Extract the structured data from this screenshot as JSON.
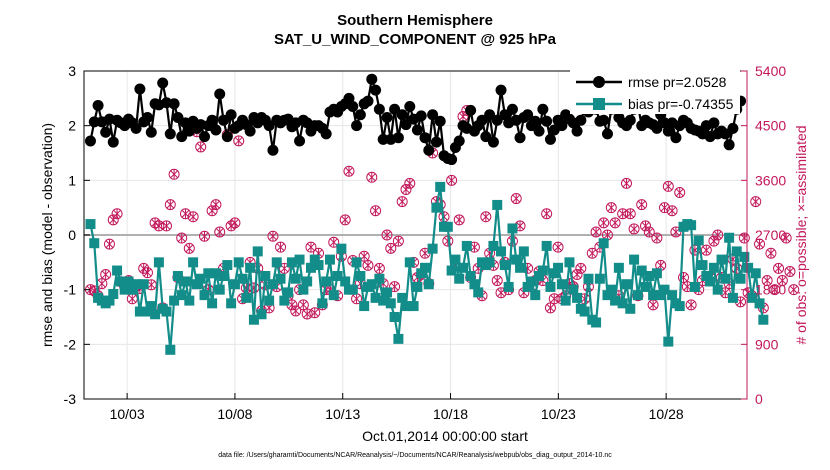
{
  "chart_data": {
    "type": "line",
    "title": "Southern Hemisphere",
    "subtitle": "SAT_U_WIND_COMPONENT @ 925 hPa",
    "xlabel": "Oct.01,2014 00:00:00 start",
    "ylabel": "rmse and bias (model - observation)",
    "ylabel_right": "# of obs: o=possible; ×=assimilated",
    "xlim": [
      1.0,
      31.75
    ],
    "ylim": [
      -3,
      3
    ],
    "ylim_right": [
      0,
      5400
    ],
    "x_ticks": [
      3,
      8,
      13,
      18,
      23,
      28
    ],
    "x_tick_labels": [
      "10/03",
      "10/08",
      "10/13",
      "10/18",
      "10/23",
      "10/28"
    ],
    "y_ticks": [
      -3,
      -2,
      -1,
      0,
      1,
      2,
      3
    ],
    "y_ticks_right": [
      0,
      900,
      1800,
      2700,
      3600,
      4500,
      5400
    ],
    "reference_line_y": 0,
    "legend": [
      {
        "label": "rmse pr=2.0528",
        "color": "#000000"
      },
      {
        "label": "bias pr=-0.74355",
        "color": "#138d8a"
      }
    ],
    "rmse_series": [
      1.72,
      2.07,
      2.37,
      2.07,
      1.88,
      2.12,
      1.7,
      2.1,
      2.05,
      2.0,
      2.12,
      2.05,
      1.95,
      2.67,
      2.07,
      2.15,
      1.88,
      2.4,
      2.38,
      2.78,
      2.42,
      1.85,
      2.4,
      2.15,
      1.8,
      2.05,
      1.9,
      2.08,
      1.95,
      2.02,
      1.8,
      2.0,
      2.1,
      1.92,
      2.58,
      2.1,
      1.8,
      2.2,
      1.95,
      2.0,
      2.1,
      2.02,
      1.9,
      2.15,
      2.05,
      2.15,
      2.1,
      2.0,
      1.55,
      2.1,
      2.05,
      2.1,
      2.12,
      1.98,
      2.05,
      1.72,
      2.1,
      2.05,
      1.9,
      2.0,
      2.0,
      1.95,
      1.85,
      2.25,
      2.3,
      2.25,
      2.35,
      2.4,
      2.5,
      2.35,
      2.0,
      2.2,
      2.4,
      2.45,
      2.85,
      2.65,
      2.3,
      1.75,
      2.15,
      1.75,
      2.3,
      1.78,
      2.2,
      2.02,
      2.35,
      2.12,
      1.92,
      2.18,
      1.78,
      1.55,
      2.2,
      1.7,
      2.08,
      1.45,
      1.4,
      1.38,
      1.6,
      1.72,
      2.0,
      1.95,
      2.28,
      1.9,
      2.0,
      2.1,
      1.8,
      2.2,
      1.7,
      2.1,
      2.65,
      2.2,
      2.05,
      2.3,
      2.1,
      1.78,
      2.15,
      2.2,
      2.0,
      2.08,
      1.9,
      2.3,
      2.08,
      1.75,
      1.92,
      2.1,
      2.0,
      2.2,
      2.12,
      2.05,
      1.9,
      2.1,
      2.3,
      2.25,
      2.45,
      2.3,
      2.08,
      2.1,
      1.85,
      2.3,
      2.35,
      2.15,
      2.05,
      2.0,
      2.1,
      2.3,
      2.38,
      2.0,
      2.1,
      2.05,
      2.02,
      1.95,
      2.2,
      2.05,
      1.9,
      2.05,
      1.78,
      2.0,
      2.1,
      2.05,
      1.95,
      1.92,
      1.9,
      1.85,
      2.0,
      1.8,
      2.05,
      1.85,
      1.9,
      1.85,
      1.65,
      1.95,
      2.3,
      2.45
    ],
    "bias_series": [
      0.2,
      -0.15,
      -1.15,
      -1.2,
      -1.25,
      -1.2,
      -1.08,
      -0.65,
      -0.85,
      -1.0,
      -0.85,
      -1.0,
      -0.9,
      -1.4,
      -0.9,
      -1.4,
      -1.3,
      -1.45,
      -0.5,
      -1.35,
      -1.4,
      -2.1,
      -1.2,
      -0.75,
      -1.1,
      -0.85,
      -1.2,
      -0.5,
      -0.9,
      -0.8,
      -1.1,
      -0.7,
      -1.25,
      -0.7,
      -1.0,
      -0.75,
      -0.55,
      -1.25,
      -0.9,
      -0.5,
      -0.8,
      -1.15,
      -0.6,
      -1.55,
      -0.3,
      -1.45,
      -0.75,
      -1.2,
      -0.9,
      -0.5,
      -0.8,
      -1.2,
      -1.05,
      -0.5,
      -0.8,
      -0.45,
      -1.0,
      -0.85,
      -0.6,
      -0.45,
      -0.55,
      -1.25,
      -0.85,
      -0.45,
      -1.1,
      -0.75,
      -0.25,
      -0.85,
      -1.0,
      -1.0,
      -0.5,
      -0.75,
      -1.3,
      -0.95,
      -0.9,
      -1.15,
      -0.8,
      -1.2,
      -1.05,
      -1.25,
      -1.5,
      -1.9,
      -1.15,
      -1.3,
      -0.5,
      -1.3,
      -0.95,
      -0.7,
      -0.6,
      -0.9,
      -0.25,
      0.5,
      0.88,
      0.15,
      0.15,
      -0.65,
      -0.45,
      -0.8,
      -0.6,
      -0.2,
      -0.75,
      -0.9,
      -1.05,
      -0.5,
      -0.55,
      -0.5,
      -0.2,
      0.55,
      -0.3,
      -0.55,
      -0.95,
      0.12,
      -0.45,
      -0.6,
      -0.3,
      -0.95,
      -0.85,
      -1.1,
      -0.75,
      -0.65,
      -0.2,
      -0.95,
      -0.7,
      -0.6,
      -0.9,
      -1.2,
      -0.5,
      -1.0,
      -1.15,
      -1.35,
      -1.4,
      -0.8,
      -1.55,
      -1.6,
      -0.8,
      -0.15,
      -1.1,
      -1.0,
      -1.2,
      -0.6,
      -1.25,
      -0.9,
      -1.35,
      -0.45,
      -1.1,
      -0.65,
      -0.95,
      -0.75,
      -1.1,
      -0.7,
      -1.1,
      -1.0,
      -1.95,
      -1.1,
      -1.25,
      -1.3,
      0.15,
      0.2,
      0.18,
      -0.95,
      -0.1,
      -0.55,
      -0.75,
      -0.85,
      -0.6,
      -1.0,
      -0.45,
      -0.8,
      -0.05,
      -1.15,
      -0.3,
      -0.8,
      -0.4,
      -0.6,
      -1.15,
      -0.7,
      -1.25,
      -1.55
    ],
    "obs_possible": [
      1800,
      1780,
      1700,
      1900,
      2050,
      2550,
      2950,
      3050,
      1930,
      1850,
      1950,
      1650,
      1850,
      1820,
      2150,
      2080,
      1880,
      2900,
      2850,
      1500,
      2850,
      3200,
      3700,
      2000,
      2650,
      3050,
      2480,
      3000,
      4400,
      4150,
      2680,
      1800,
      3100,
      3200,
      2750,
      2150,
      4350,
      2850,
      2900,
      4250,
      1650,
      1830,
      2250,
      1830,
      2150,
      1450,
      1880,
      1500,
      2680,
      1850,
      2500,
      2150,
      1700,
      1550,
      1450,
      1800,
      1550,
      1400,
      2500,
      1420,
      2400,
      1550,
      1800,
      1800,
      2580,
      1700,
      2350,
      2950,
      3750,
      2280,
      1650,
      1900,
      2350,
      2200,
      3650,
      3100,
      2150,
      1900,
      2700,
      2480,
      1850,
      2600,
      3250,
      3450,
      3550,
      2250,
      2000,
      2050,
      2400,
      1900,
      4050,
      3250,
      3200,
      3000,
      2600,
      3600,
      2200,
      2950,
      4650,
      4750,
      2000,
      2500,
      2150,
      1700,
      3000,
      2400,
      2200,
      1950,
      1750,
      2250,
      1800,
      2600,
      3300,
      2850,
      1750,
      2150,
      1850,
      1950,
      2100,
      1950,
      3050,
      1500,
      1650,
      2500,
      1650,
      1700,
      1900,
      1850,
      2050,
      2150,
      1650,
      1850,
      2400,
      2750,
      2500,
      2900,
      2700,
      3150,
      2900,
      1700,
      3050,
      3550,
      3050,
      2800,
      1700,
      3200,
      2850,
      2750,
      1550,
      2650,
      2200,
      3150,
      3500,
      3100,
      2750,
      3400,
      2000,
      1850,
      1550,
      2450,
      1800,
      1950,
      2450,
      2000,
      2600,
      2700,
      2000,
      1750,
      1900,
      2300,
      2150,
      1600,
      2650,
      1750,
      1700,
      3250,
      2550,
      1500,
      1950,
      2400,
      1800,
      2150,
      1950,
      2650,
      2100,
      1800
    ],
    "obs_assimilated": [
      1800,
      1780,
      1700,
      1900,
      2050,
      2550,
      2950,
      3050,
      1930,
      1850,
      1950,
      1650,
      1850,
      1820,
      2150,
      2080,
      1880,
      2900,
      2850,
      1500,
      2850,
      3200,
      3700,
      2000,
      2650,
      3050,
      2480,
      3000,
      4400,
      4150,
      2680,
      1800,
      3100,
      3200,
      2750,
      2150,
      4350,
      2850,
      2900,
      4250,
      1650,
      1830,
      2250,
      1830,
      2150,
      1450,
      1880,
      1500,
      2680,
      1850,
      2500,
      2150,
      1700,
      1550,
      1450,
      1800,
      1550,
      1400,
      2500,
      1420,
      2400,
      1550,
      1800,
      1800,
      2580,
      1700,
      2350,
      2950,
      3750,
      2280,
      1650,
      1900,
      2350,
      2200,
      3650,
      3100,
      2150,
      1900,
      2700,
      2480,
      1850,
      2600,
      3250,
      3450,
      3550,
      2250,
      2000,
      2050,
      2400,
      1900,
      4050,
      3250,
      3200,
      3000,
      2600,
      3600,
      2200,
      2950,
      4650,
      4750,
      2000,
      2500,
      2150,
      1700,
      3000,
      2400,
      2200,
      1950,
      1750,
      2250,
      1800,
      2600,
      3300,
      2850,
      1750,
      2150,
      1850,
      1950,
      2100,
      1950,
      3050,
      1500,
      1650,
      2500,
      1650,
      1700,
      1900,
      1850,
      2050,
      2150,
      1650,
      1850,
      2400,
      2750,
      2500,
      2900,
      2700,
      3150,
      2900,
      1700,
      3050,
      3550,
      3050,
      2800,
      1700,
      3200,
      2850,
      2750,
      1550,
      2650,
      2200,
      3150,
      3500,
      3100,
      2750,
      3400,
      2000,
      1850,
      1550,
      2450,
      1800,
      1950,
      2450,
      2000,
      2600,
      2700,
      2000,
      1750,
      1900,
      2300,
      2150,
      1600,
      2650,
      1750,
      1700,
      3250,
      2550,
      1500,
      1950,
      2400,
      1800,
      2150,
      1950,
      2650,
      2100,
      1800
    ],
    "footnote": "data file: /Users/gharamti/Documents/NCAR/Reanalysis/~/Documents/NCAR/Reanalysis/webpub/obs_diag_output_2014-10.nc",
    "colors": {
      "rmse": "#000000",
      "bias": "#138d8a",
      "obs": "#c2185b",
      "zero_line": "#b0b0b0",
      "grid": "#e6e6e6"
    }
  }
}
